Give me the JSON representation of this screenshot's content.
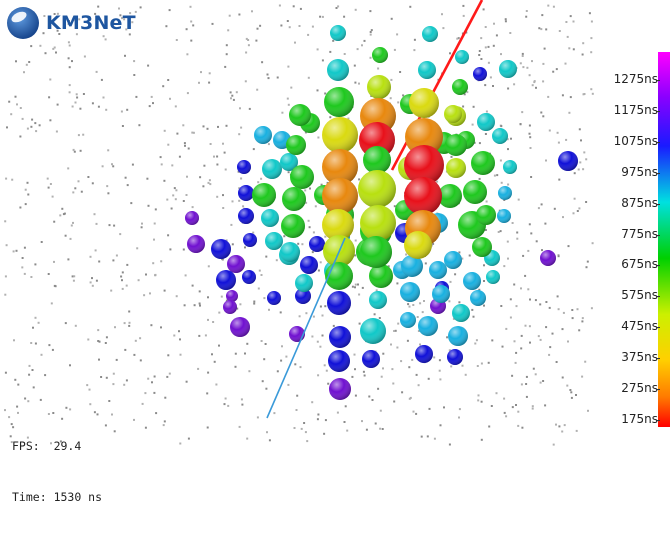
{
  "logo": {
    "text": "KM3NeT"
  },
  "hud": {
    "fps_label": "FPS:",
    "fps_value": "29.4",
    "time_label": "Time:",
    "time_value": "1530 ns"
  },
  "colorbar": {
    "labels": [
      "1275ns",
      "1175ns",
      "1075ns",
      "975ns",
      "875ns",
      "775ns",
      "675ns",
      "575ns",
      "475ns",
      "375ns",
      "275ns",
      "175ns"
    ],
    "top_color": "#ff00ff",
    "bottom_color": "#ff0000"
  },
  "colors": {
    "track_top": "#ff1a1a",
    "track_bottom": "#3a9ad9",
    "dom_dots": "#8a8a8a",
    "logo_blue": "#1e56a0"
  }
}
